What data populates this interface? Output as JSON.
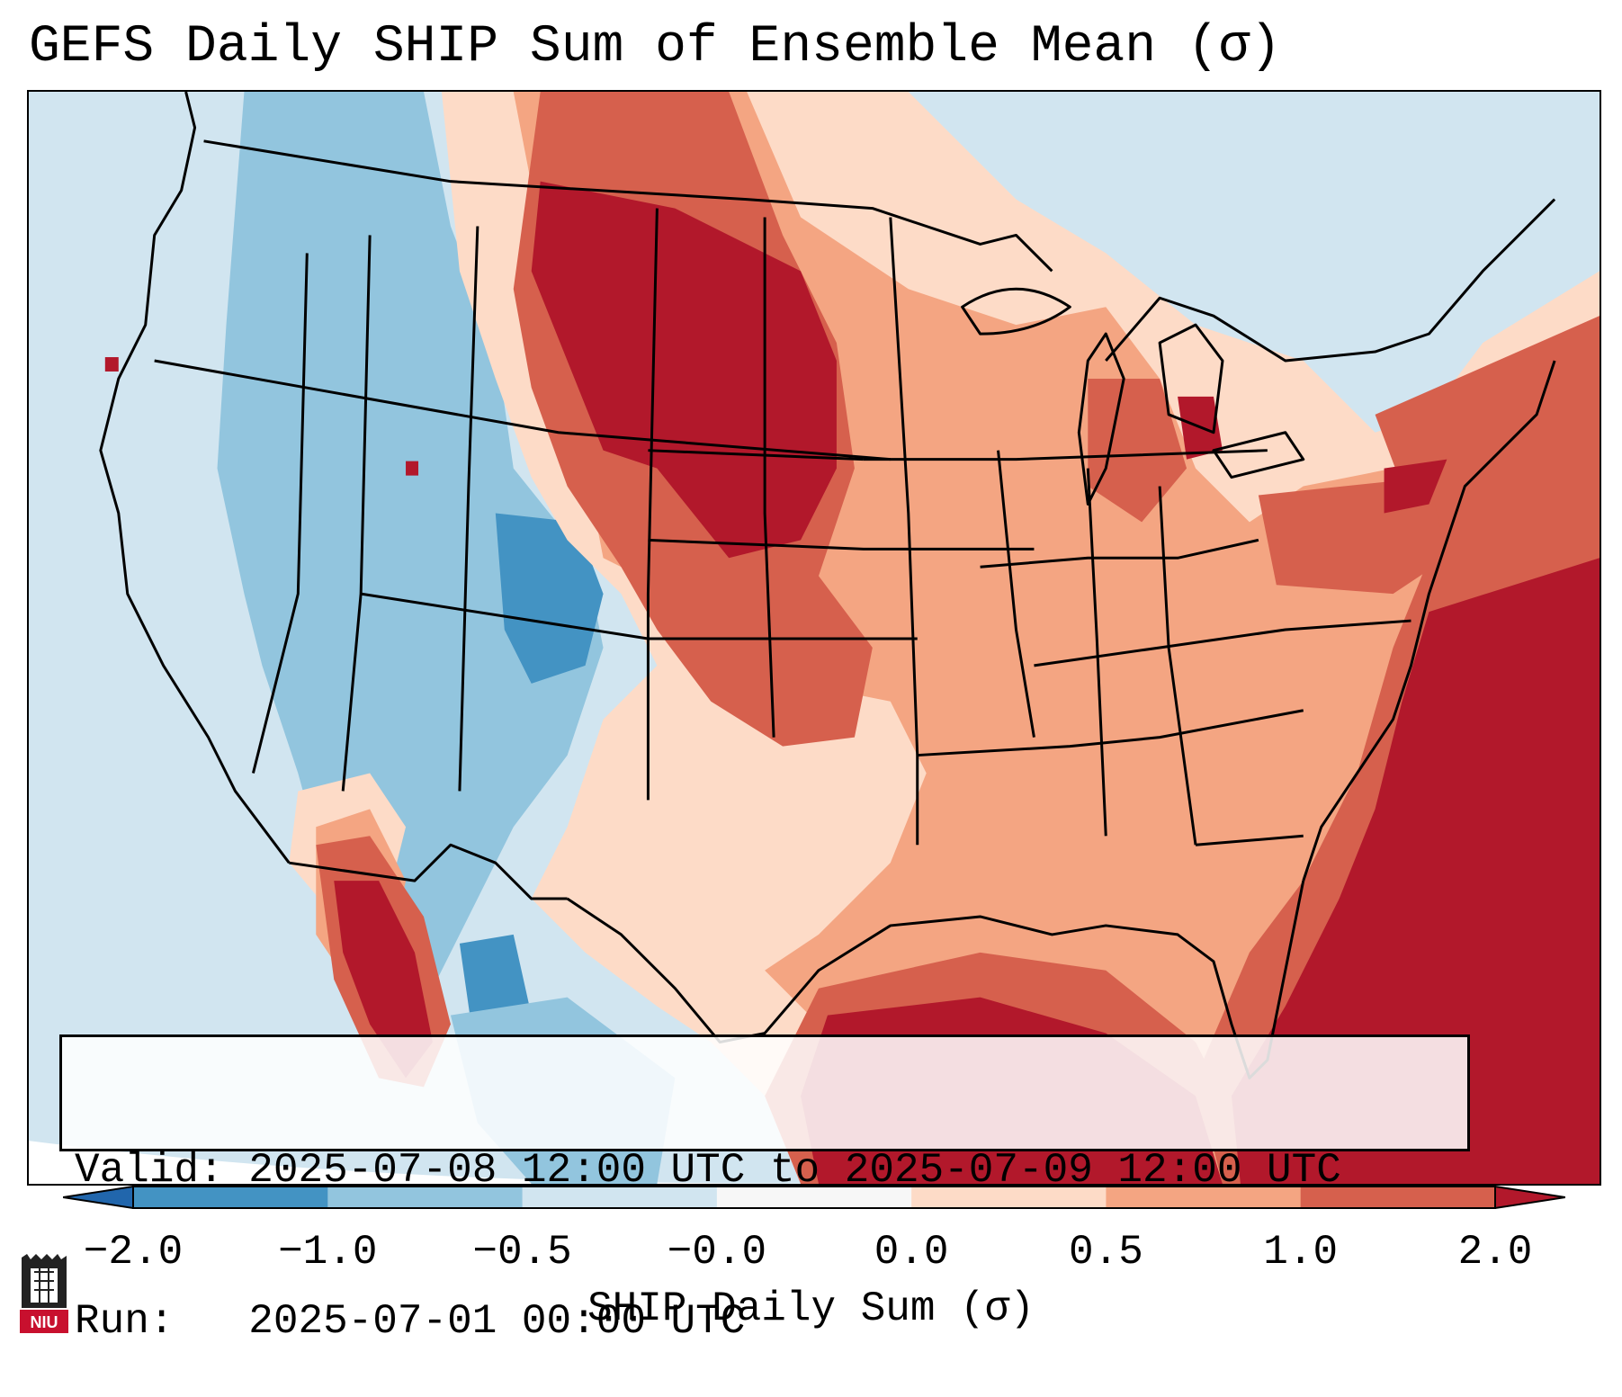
{
  "title": "GEFS Daily SHIP Sum of Ensemble Mean (σ)",
  "map": {
    "region": "Contiguous United States, southern Canada, northern Mexico",
    "variable": "Significant Hail Parameter daily sum, standardized anomaly"
  },
  "info": {
    "valid_label": "Valid:",
    "valid_value": "2025-07-08 12:00 UTC to 2025-07-09 12:00 UTC",
    "run_label": "Run:",
    "run_value": "2025-07-01 00:00 UTC"
  },
  "colorbar": {
    "label": "SHIP Daily Sum (σ)",
    "ticks": [
      "−2.0",
      "−1.0",
      "−0.5",
      "−0.0",
      "0.0",
      "0.5",
      "1.0",
      "2.0"
    ],
    "bins": [
      {
        "from": -2.0,
        "to": -1.0,
        "color": "#4393c3"
      },
      {
        "from": -1.0,
        "to": -0.5,
        "color": "#92c5de"
      },
      {
        "from": -0.5,
        "to": -0.0,
        "color": "#d1e5f0"
      },
      {
        "from": -0.0,
        "to": 0.0,
        "color": "#f7f7f7"
      },
      {
        "from": 0.0,
        "to": 0.5,
        "color": "#fddbc7"
      },
      {
        "from": 0.5,
        "to": 1.0,
        "color": "#f4a582"
      },
      {
        "from": 1.0,
        "to": 2.0,
        "color": "#d6604d"
      }
    ],
    "under_color": "#2166ac",
    "over_color": "#b2182b"
  },
  "logo": {
    "text": "NIU",
    "color": "#c8102e"
  }
}
